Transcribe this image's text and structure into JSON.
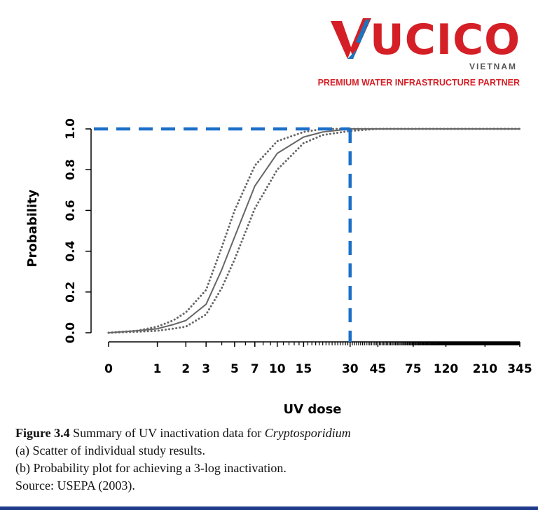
{
  "logo": {
    "word": "UCICO",
    "subtitle": "VIETNAM",
    "tagline": "PREMIUM WATER INFRASTRUCTURE PARTNER",
    "colors": {
      "brand_red": "#d51f26",
      "brand_blue": "#1b75bc"
    }
  },
  "chart_data": {
    "type": "line",
    "title": "",
    "xlabel": "UV dose",
    "ylabel": "Probability",
    "x_scale": "log",
    "xlim": [
      0,
      345
    ],
    "ylim": [
      0,
      1.0
    ],
    "x_tick_labels": [
      "0",
      "1",
      "2",
      "3",
      "5",
      "7",
      "10",
      "15",
      "30",
      "45",
      "75",
      "120",
      "210",
      "345"
    ],
    "y_tick_labels": [
      "0.0",
      "0.2",
      "0.4",
      "0.6",
      "0.8",
      "1.0"
    ],
    "x_tick_values": [
      0,
      1,
      2,
      3,
      5,
      7,
      10,
      15,
      30,
      45,
      75,
      120,
      210,
      345
    ],
    "y_tick_values": [
      0,
      0.2,
      0.4,
      0.6,
      0.8,
      1.0
    ],
    "grid": false,
    "series": [
      {
        "style": "solid",
        "color": "#666666",
        "x": [
          0,
          0.5,
          1,
          1.5,
          2,
          3,
          4,
          5,
          7,
          10,
          15,
          20,
          30,
          45,
          345
        ],
        "y": [
          0.0,
          0.01,
          0.02,
          0.04,
          0.06,
          0.14,
          0.31,
          0.47,
          0.72,
          0.88,
          0.96,
          0.985,
          1.0,
          1.0,
          1.0
        ]
      },
      {
        "style": "dotted",
        "color": "#666666",
        "x": [
          0,
          0.5,
          1,
          1.5,
          2,
          3,
          4,
          5,
          7,
          10,
          15,
          20,
          30,
          45,
          345
        ],
        "y": [
          0.0,
          0.01,
          0.03,
          0.06,
          0.1,
          0.21,
          0.42,
          0.6,
          0.82,
          0.94,
          0.985,
          1.0,
          1.0,
          1.0,
          1.0
        ]
      },
      {
        "style": "dotted",
        "color": "#666666",
        "x": [
          0,
          0.5,
          1,
          1.5,
          2,
          3,
          4,
          5,
          7,
          10,
          15,
          20,
          30,
          45,
          345
        ],
        "y": [
          0.0,
          0.005,
          0.01,
          0.02,
          0.03,
          0.09,
          0.22,
          0.36,
          0.61,
          0.8,
          0.93,
          0.97,
          0.99,
          1.0,
          1.0
        ]
      }
    ],
    "annotations": [
      {
        "type": "dashed-guide",
        "color": "#1b6fc9",
        "x": 30,
        "y": 1.0
      }
    ]
  },
  "caption": {
    "figure_label": "Figure 3.4",
    "line1_text": " Summary of UV inactivation data for ",
    "line1_italic": "Cryptosporidium",
    "line2": "(a) Scatter of individual study results.",
    "line3": "(b) Probability plot for achieving a 3-log inactivation.",
    "line4": "Source: USEPA (2003)."
  }
}
